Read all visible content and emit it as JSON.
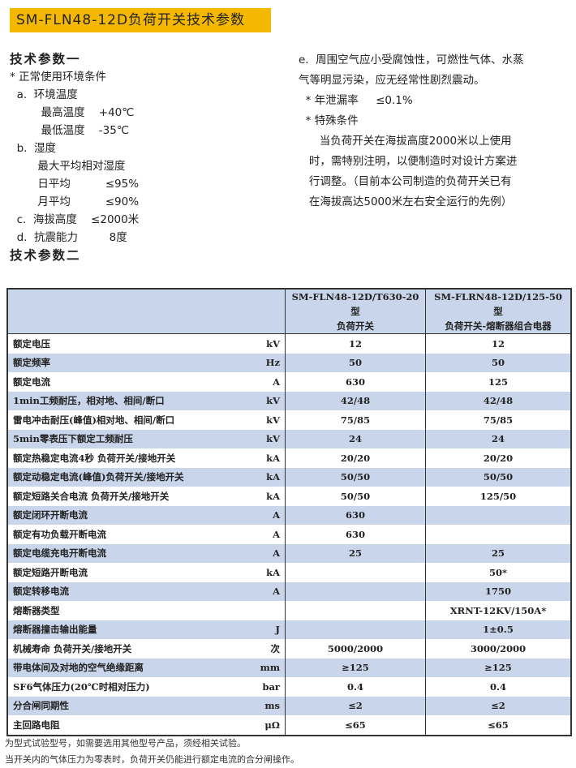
{
  "banner": "SM-FLN48-12D负荷开关技术参数",
  "left": {
    "h1": "技术参数一",
    "lines": [
      "* 正常使用环境条件",
      "  a.  环境温度",
      "         最高温度    +40℃",
      "         最低温度    -35℃",
      "  b.  湿度",
      "        最大平均相对湿度",
      "        日平均          ≤95%",
      "        月平均          ≤90%",
      "  c.  海拔高度    ≤2000米",
      "  d.  抗震能力         8度"
    ],
    "h2": "技术参数二"
  },
  "right": {
    "lines": [
      "e.  周围空气应小受腐蚀性，可燃性气体、水蒸",
      "气等明显污染，应无经常性剧烈震动。",
      "  * 年泄漏率     ≤0.1%",
      "  * 特殊条件",
      "      当负荷开关在海拔高度2000米以上使用",
      "   时，需特别注明，以便制造时对设计方案进",
      "   行调整。（目前本公司制造的负荷开关已有",
      "   在海拔高达5000米左右安全运行的先例）"
    ]
  },
  "table": {
    "col1": [
      "SM-FLN48-12D/T630-20型",
      "负荷开关"
    ],
    "col2": [
      "SM-FLRN48-12D/125-50型",
      "负荷开关-熔断器组合电器"
    ],
    "rows": [
      [
        "额定电压",
        "kV",
        "12",
        "12"
      ],
      [
        "额定频率",
        "Hz",
        "50",
        "50"
      ],
      [
        "额定电流",
        "A",
        "630",
        "125"
      ],
      [
        "1min工频耐压，相对地、相间/断口",
        "kV",
        "42/48",
        "42/48"
      ],
      [
        "雷电冲击耐压(峰值)相对地、相间/断口",
        "kV",
        "75/85",
        "75/85"
      ],
      [
        "5min零表压下额定工频耐压",
        "kV",
        "24",
        "24"
      ],
      [
        "额定热稳定电流4秒    负荷开关/接地开关",
        "kA",
        "20/20",
        "20/20"
      ],
      [
        "额定动稳定电流(峰值)负荷开关/接地开关",
        "kA",
        "50/50",
        "50/50"
      ],
      [
        "额定短路关合电流        负荷开关/接地开关",
        "kA",
        "50/50",
        "125/50"
      ],
      [
        "额定闭环开断电流",
        "A",
        "630",
        ""
      ],
      [
        "额定有功负载开断电流",
        "A",
        "630",
        ""
      ],
      [
        "额定电缆充电开断电流",
        "A",
        "25",
        "25"
      ],
      [
        "额定短路开断电流",
        "kA",
        "",
        "50*"
      ],
      [
        "额定转移电流",
        "A",
        "",
        "1750"
      ],
      [
        "熔断器类型",
        "",
        "",
        "XRNT-12KV/150A*"
      ],
      [
        "熔断器撞击输出能量",
        "J",
        "",
        "1±0.5"
      ],
      [
        "机械寿命  负荷开关/接地开关",
        "次",
        "5000/2000",
        "3000/2000"
      ],
      [
        "带电体间及对地的空气绝缘距离",
        "mm",
        "≥125",
        "≥125"
      ],
      [
        "SF6气体压力(20℃时相对压力)",
        "bar",
        "0.4",
        "0.4"
      ],
      [
        "分合闸同期性",
        "ms",
        "≤2",
        "≤2"
      ],
      [
        "主回路电阻",
        "μΩ",
        "≤65",
        "≤65"
      ]
    ]
  },
  "footnotes": [
    "为型式试验型号，如需要选用其他型号产品，须经相关试验。",
    "当开关内的气体压力为零表时，负荷开关仍能进行额定电流的合分闸操作。"
  ]
}
